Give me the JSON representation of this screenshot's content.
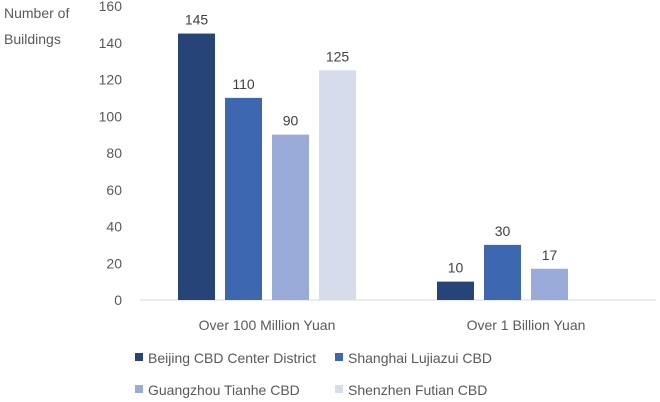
{
  "chart_data": {
    "type": "bar",
    "ylabel": [
      "Number of",
      "Buildings"
    ],
    "ylim": [
      0,
      160
    ],
    "yticks": [
      0,
      20,
      40,
      60,
      80,
      100,
      120,
      140,
      160
    ],
    "grid": false,
    "legend_position": "bottom",
    "categories": [
      "Over 100 Million Yuan",
      "Over 1 Billion Yuan"
    ],
    "series": [
      {
        "name": "Beijing CBD Center District",
        "color": "#264478",
        "values": [
          145,
          10
        ]
      },
      {
        "name": "Shanghai Lujiazui CBD",
        "color": "#3d67b0",
        "values": [
          110,
          30
        ]
      },
      {
        "name": "Guangzhou Tianhe CBD",
        "color": "#9aaad9",
        "values": [
          90,
          17
        ]
      },
      {
        "name": "Shenzhen Futian CBD",
        "color": "#d6dcec",
        "values": [
          125,
          null
        ]
      }
    ]
  }
}
